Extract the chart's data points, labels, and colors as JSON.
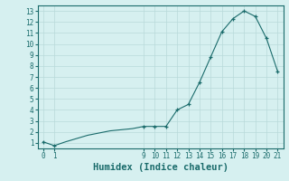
{
  "x": [
    0,
    1,
    2,
    3,
    4,
    5,
    6,
    7,
    8,
    9,
    10,
    11,
    12,
    13,
    14,
    15,
    16,
    17,
    18,
    19,
    20,
    21
  ],
  "y": [
    1.1,
    0.75,
    1.1,
    1.4,
    1.7,
    1.9,
    2.1,
    2.2,
    2.3,
    2.5,
    2.5,
    2.5,
    4.0,
    4.5,
    6.5,
    8.8,
    11.1,
    12.3,
    13.0,
    12.5,
    10.5,
    7.5
  ],
  "markers_x": [
    0,
    1,
    9,
    10,
    11,
    12,
    13,
    14,
    15,
    16,
    17,
    18,
    19,
    20,
    21
  ],
  "markers_y": [
    1.1,
    0.75,
    2.5,
    2.5,
    2.5,
    4.0,
    4.5,
    6.5,
    8.8,
    11.1,
    12.3,
    13.0,
    12.5,
    10.5,
    7.5
  ],
  "xlabel": "Humidex (Indice chaleur)",
  "ylabel": "",
  "xlim": [
    -0.5,
    21.5
  ],
  "ylim": [
    0.5,
    13.5
  ],
  "xticks": [
    0,
    1,
    9,
    10,
    11,
    12,
    13,
    14,
    15,
    16,
    17,
    18,
    19,
    20,
    21
  ],
  "yticks": [
    1,
    2,
    3,
    4,
    5,
    6,
    7,
    8,
    9,
    10,
    11,
    12,
    13
  ],
  "line_color": "#1a6b6b",
  "marker": "+",
  "bg_color": "#d6f0f0",
  "grid_color": "#b8dada",
  "tick_fontsize": 5.5,
  "xlabel_fontsize": 7.5
}
